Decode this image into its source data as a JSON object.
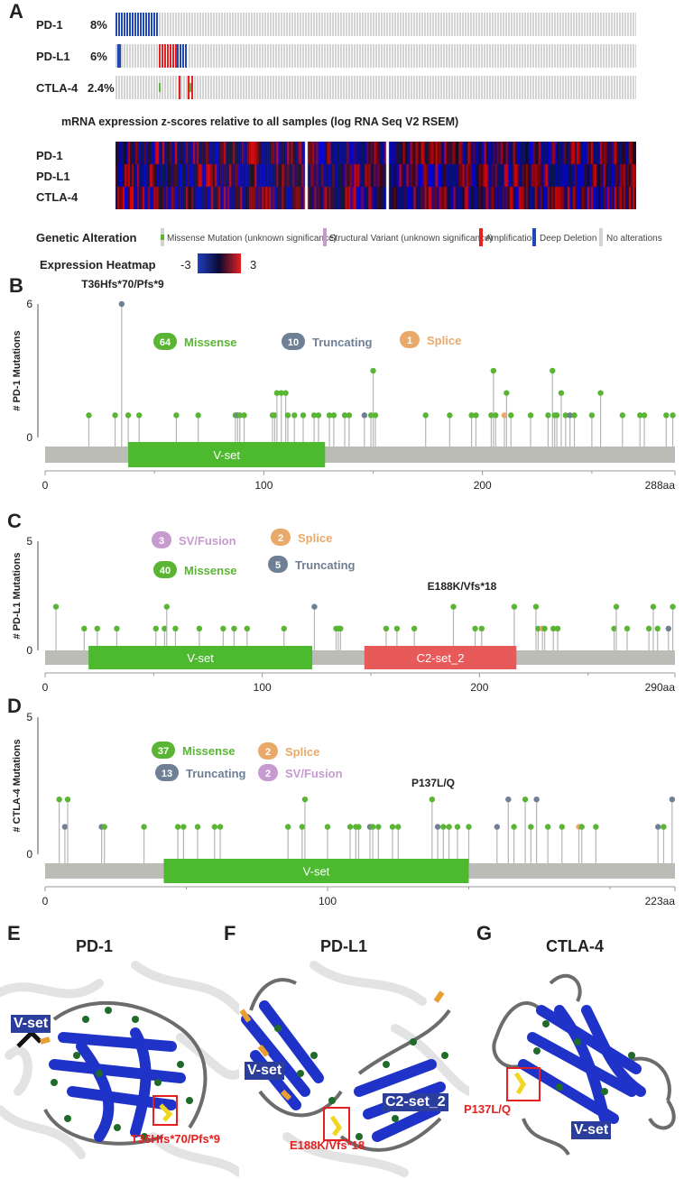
{
  "panel_a": {
    "letter": "A",
    "oncoprint": [
      {
        "gene": "PD-1",
        "pct": "8%"
      },
      {
        "gene": "PD-L1",
        "pct": "6%"
      },
      {
        "gene": "CTLA-4",
        "pct": "2.4%"
      }
    ],
    "heatmap_title": "mRNA expression z-scores relative to all samples (log RNA Seq V2 RSEM)",
    "heatmap_genes": [
      "PD-1",
      "PD-L1",
      "CTLA-4"
    ],
    "legend": {
      "genetic_title": "Genetic Alteration",
      "items": [
        "Missense Mutation (unknown significance)",
        "Structural Variant (unknown significance)",
        "Amplification",
        "Deep Deletion",
        "No alterations"
      ],
      "heatmap_title": "Expression Heatmap",
      "min": "-3",
      "max": "3"
    },
    "colors": {
      "missense": "#5ab534",
      "structural": "#c79bd0",
      "amp": "#e52020",
      "del": "#1f48b4",
      "none": "#d3d3d3"
    }
  },
  "chart_data": [
    {
      "type": "lollipop",
      "panel": "B",
      "gene": "PD-1",
      "ylabel": "# PD-1 Mutations",
      "ylim": [
        0,
        6
      ],
      "yticks": [
        "0",
        "6"
      ],
      "xticks": [
        "0",
        "100",
        "200",
        "288aa"
      ],
      "length": 288,
      "domains": [
        {
          "name": "V-set",
          "start": 38,
          "end": 128,
          "color": "#4db92f"
        }
      ],
      "summary": [
        {
          "count": "64",
          "label": "Missense",
          "color": "#5ab534"
        },
        {
          "count": "10",
          "label": "Truncating",
          "color": "#6f7f95"
        },
        {
          "count": "1",
          "label": "Splice",
          "color": "#e9a96a"
        }
      ],
      "hotspot_label": "T36Hfs*70/Pfs*9",
      "mutations": [
        {
          "pos": 20,
          "n": 1,
          "t": "m"
        },
        {
          "pos": 32,
          "n": 1,
          "t": "m"
        },
        {
          "pos": 35,
          "n": 6,
          "t": "t"
        },
        {
          "pos": 38,
          "n": 1,
          "t": "m"
        },
        {
          "pos": 43,
          "n": 1,
          "t": "m"
        },
        {
          "pos": 60,
          "n": 1,
          "t": "m"
        },
        {
          "pos": 70,
          "n": 1,
          "t": "m"
        },
        {
          "pos": 87,
          "n": 1,
          "t": "m"
        },
        {
          "pos": 88,
          "n": 1,
          "t": "t"
        },
        {
          "pos": 89,
          "n": 1,
          "t": "m"
        },
        {
          "pos": 91,
          "n": 1,
          "t": "m"
        },
        {
          "pos": 104,
          "n": 1,
          "t": "m"
        },
        {
          "pos": 105,
          "n": 1,
          "t": "m"
        },
        {
          "pos": 106,
          "n": 2,
          "t": "m"
        },
        {
          "pos": 108,
          "n": 2,
          "t": "m"
        },
        {
          "pos": 110,
          "n": 2,
          "t": "m"
        },
        {
          "pos": 111,
          "n": 1,
          "t": "m"
        },
        {
          "pos": 114,
          "n": 1,
          "t": "m"
        },
        {
          "pos": 118,
          "n": 1,
          "t": "m"
        },
        {
          "pos": 123,
          "n": 1,
          "t": "m"
        },
        {
          "pos": 125,
          "n": 1,
          "t": "m"
        },
        {
          "pos": 130,
          "n": 1,
          "t": "m"
        },
        {
          "pos": 132,
          "n": 1,
          "t": "m"
        },
        {
          "pos": 137,
          "n": 1,
          "t": "m"
        },
        {
          "pos": 139,
          "n": 1,
          "t": "m"
        },
        {
          "pos": 146,
          "n": 1,
          "t": "t"
        },
        {
          "pos": 149,
          "n": 1,
          "t": "m"
        },
        {
          "pos": 150,
          "n": 3,
          "t": "m"
        },
        {
          "pos": 151,
          "n": 1,
          "t": "m"
        },
        {
          "pos": 174,
          "n": 1,
          "t": "m"
        },
        {
          "pos": 185,
          "n": 1,
          "t": "m"
        },
        {
          "pos": 195,
          "n": 1,
          "t": "m"
        },
        {
          "pos": 197,
          "n": 1,
          "t": "m"
        },
        {
          "pos": 204,
          "n": 1,
          "t": "m"
        },
        {
          "pos": 205,
          "n": 3,
          "t": "m"
        },
        {
          "pos": 206,
          "n": 1,
          "t": "m"
        },
        {
          "pos": 210,
          "n": 1,
          "t": "s"
        },
        {
          "pos": 211,
          "n": 2,
          "t": "m"
        },
        {
          "pos": 213,
          "n": 1,
          "t": "m"
        },
        {
          "pos": 222,
          "n": 1,
          "t": "m"
        },
        {
          "pos": 230,
          "n": 1,
          "t": "m"
        },
        {
          "pos": 232,
          "n": 3,
          "t": "m"
        },
        {
          "pos": 233,
          "n": 1,
          "t": "m"
        },
        {
          "pos": 234,
          "n": 1,
          "t": "m"
        },
        {
          "pos": 236,
          "n": 2,
          "t": "m"
        },
        {
          "pos": 238,
          "n": 1,
          "t": "m"
        },
        {
          "pos": 240,
          "n": 1,
          "t": "t"
        },
        {
          "pos": 242,
          "n": 1,
          "t": "m"
        },
        {
          "pos": 250,
          "n": 1,
          "t": "m"
        },
        {
          "pos": 254,
          "n": 2,
          "t": "m"
        },
        {
          "pos": 264,
          "n": 1,
          "t": "m"
        },
        {
          "pos": 272,
          "n": 1,
          "t": "m"
        },
        {
          "pos": 274,
          "n": 1,
          "t": "m"
        },
        {
          "pos": 284,
          "n": 1,
          "t": "m"
        },
        {
          "pos": 287,
          "n": 1,
          "t": "m"
        }
      ]
    },
    {
      "type": "lollipop",
      "panel": "C",
      "gene": "PD-L1",
      "ylabel": "# PD-L1 Mutations",
      "ylim": [
        0,
        5
      ],
      "yticks": [
        "0",
        "5"
      ],
      "xticks": [
        "0",
        "100",
        "200",
        "290aa"
      ],
      "length": 290,
      "domains": [
        {
          "name": "V-set",
          "start": 20,
          "end": 123,
          "color": "#4db92f"
        },
        {
          "name": "C2-set_2",
          "start": 147,
          "end": 217,
          "color": "#e85a5a"
        }
      ],
      "summary": [
        {
          "count": "3",
          "label": "SV/Fusion",
          "color": "#c79bd0"
        },
        {
          "count": "2",
          "label": "Splice",
          "color": "#e9a96a"
        },
        {
          "count": "40",
          "label": "Missense",
          "color": "#5ab534"
        },
        {
          "count": "5",
          "label": "Truncating",
          "color": "#6f7f95"
        }
      ],
      "hotspot_label": "E188K/Vfs*18",
      "mutations": [
        {
          "pos": 5,
          "n": 2,
          "t": "m"
        },
        {
          "pos": 18,
          "n": 1,
          "t": "m"
        },
        {
          "pos": 24,
          "n": 1,
          "t": "m"
        },
        {
          "pos": 33,
          "n": 1,
          "t": "m"
        },
        {
          "pos": 51,
          "n": 1,
          "t": "m"
        },
        {
          "pos": 55,
          "n": 1,
          "t": "m"
        },
        {
          "pos": 56,
          "n": 2,
          "t": "m"
        },
        {
          "pos": 60,
          "n": 1,
          "t": "m"
        },
        {
          "pos": 71,
          "n": 1,
          "t": "m"
        },
        {
          "pos": 82,
          "n": 1,
          "t": "m"
        },
        {
          "pos": 87,
          "n": 1,
          "t": "m"
        },
        {
          "pos": 93,
          "n": 1,
          "t": "m"
        },
        {
          "pos": 110,
          "n": 1,
          "t": "m"
        },
        {
          "pos": 124,
          "n": 2,
          "t": "t"
        },
        {
          "pos": 134,
          "n": 1,
          "t": "m"
        },
        {
          "pos": 135,
          "n": 1,
          "t": "m"
        },
        {
          "pos": 136,
          "n": 1,
          "t": "m"
        },
        {
          "pos": 157,
          "n": 1,
          "t": "m"
        },
        {
          "pos": 162,
          "n": 1,
          "t": "m"
        },
        {
          "pos": 170,
          "n": 1,
          "t": "m"
        },
        {
          "pos": 188,
          "n": 2,
          "t": "m"
        },
        {
          "pos": 198,
          "n": 1,
          "t": "m"
        },
        {
          "pos": 201,
          "n": 1,
          "t": "m"
        },
        {
          "pos": 216,
          "n": 2,
          "t": "m"
        },
        {
          "pos": 226,
          "n": 2,
          "t": "m"
        },
        {
          "pos": 227,
          "n": 1,
          "t": "m"
        },
        {
          "pos": 229,
          "n": 1,
          "t": "s"
        },
        {
          "pos": 230,
          "n": 1,
          "t": "m"
        },
        {
          "pos": 234,
          "n": 1,
          "t": "m"
        },
        {
          "pos": 236,
          "n": 1,
          "t": "m"
        },
        {
          "pos": 262,
          "n": 1,
          "t": "m"
        },
        {
          "pos": 263,
          "n": 2,
          "t": "m"
        },
        {
          "pos": 268,
          "n": 1,
          "t": "m"
        },
        {
          "pos": 278,
          "n": 1,
          "t": "m"
        },
        {
          "pos": 280,
          "n": 2,
          "t": "m"
        },
        {
          "pos": 282,
          "n": 1,
          "t": "m"
        },
        {
          "pos": 287,
          "n": 1,
          "t": "t"
        },
        {
          "pos": 289,
          "n": 2,
          "t": "m"
        }
      ]
    },
    {
      "type": "lollipop",
      "panel": "D",
      "gene": "CTLA-4",
      "ylabel": "# CTLA-4 Mutations",
      "ylim": [
        0,
        5
      ],
      "yticks": [
        "0",
        "5"
      ],
      "xticks": [
        "0",
        "100",
        "223aa"
      ],
      "length": 223,
      "domains": [
        {
          "name": "V-set",
          "start": 42,
          "end": 150,
          "color": "#4db92f"
        }
      ],
      "summary": [
        {
          "count": "37",
          "label": "Missense",
          "color": "#5ab534"
        },
        {
          "count": "2",
          "label": "Splice",
          "color": "#e9a96a"
        },
        {
          "count": "13",
          "label": "Truncating",
          "color": "#6f7f95"
        },
        {
          "count": "2",
          "label": "SV/Fusion",
          "color": "#c79bd0"
        }
      ],
      "hotspot_label": "P137L/Q",
      "mutations": [
        {
          "pos": 5,
          "n": 2,
          "t": "m"
        },
        {
          "pos": 7,
          "n": 1,
          "t": "t"
        },
        {
          "pos": 8,
          "n": 2,
          "t": "m"
        },
        {
          "pos": 20,
          "n": 1,
          "t": "t"
        },
        {
          "pos": 21,
          "n": 1,
          "t": "m"
        },
        {
          "pos": 35,
          "n": 1,
          "t": "m"
        },
        {
          "pos": 47,
          "n": 1,
          "t": "m"
        },
        {
          "pos": 49,
          "n": 1,
          "t": "m"
        },
        {
          "pos": 54,
          "n": 1,
          "t": "m"
        },
        {
          "pos": 60,
          "n": 1,
          "t": "m"
        },
        {
          "pos": 62,
          "n": 1,
          "t": "m"
        },
        {
          "pos": 86,
          "n": 1,
          "t": "m"
        },
        {
          "pos": 91,
          "n": 1,
          "t": "m"
        },
        {
          "pos": 92,
          "n": 2,
          "t": "m"
        },
        {
          "pos": 100,
          "n": 1,
          "t": "m"
        },
        {
          "pos": 108,
          "n": 1,
          "t": "m"
        },
        {
          "pos": 110,
          "n": 1,
          "t": "m"
        },
        {
          "pos": 111,
          "n": 1,
          "t": "m"
        },
        {
          "pos": 115,
          "n": 1,
          "t": "t"
        },
        {
          "pos": 116,
          "n": 1,
          "t": "m"
        },
        {
          "pos": 118,
          "n": 1,
          "t": "m"
        },
        {
          "pos": 123,
          "n": 1,
          "t": "m"
        },
        {
          "pos": 125,
          "n": 1,
          "t": "m"
        },
        {
          "pos": 137,
          "n": 2,
          "t": "m"
        },
        {
          "pos": 139,
          "n": 1,
          "t": "t"
        },
        {
          "pos": 141,
          "n": 1,
          "t": "m"
        },
        {
          "pos": 143,
          "n": 1,
          "t": "m"
        },
        {
          "pos": 146,
          "n": 1,
          "t": "m"
        },
        {
          "pos": 150,
          "n": 1,
          "t": "m"
        },
        {
          "pos": 160,
          "n": 1,
          "t": "t"
        },
        {
          "pos": 164,
          "n": 2,
          "t": "t"
        },
        {
          "pos": 166,
          "n": 1,
          "t": "m"
        },
        {
          "pos": 170,
          "n": 2,
          "t": "m"
        },
        {
          "pos": 172,
          "n": 1,
          "t": "m"
        },
        {
          "pos": 174,
          "n": 2,
          "t": "t"
        },
        {
          "pos": 178,
          "n": 1,
          "t": "m"
        },
        {
          "pos": 183,
          "n": 1,
          "t": "m"
        },
        {
          "pos": 189,
          "n": 1,
          "t": "s"
        },
        {
          "pos": 190,
          "n": 1,
          "t": "m"
        },
        {
          "pos": 195,
          "n": 1,
          "t": "m"
        },
        {
          "pos": 217,
          "n": 1,
          "t": "t"
        },
        {
          "pos": 219,
          "n": 1,
          "t": "m"
        },
        {
          "pos": 222,
          "n": 2,
          "t": "t"
        }
      ]
    }
  ],
  "structures": [
    {
      "letter": "E",
      "title": "PD-1",
      "domain_labels": [
        "V-set"
      ],
      "mutation_label": "T36Hfs*70/Pfs*9"
    },
    {
      "letter": "F",
      "title": "PD-L1",
      "domain_labels": [
        "V-set",
        "C2-set_2"
      ],
      "mutation_label": "E188K/Vfs*18"
    },
    {
      "letter": "G",
      "title": "CTLA-4",
      "domain_labels": [
        "V-set"
      ],
      "mutation_label": "P137L/Q"
    }
  ]
}
